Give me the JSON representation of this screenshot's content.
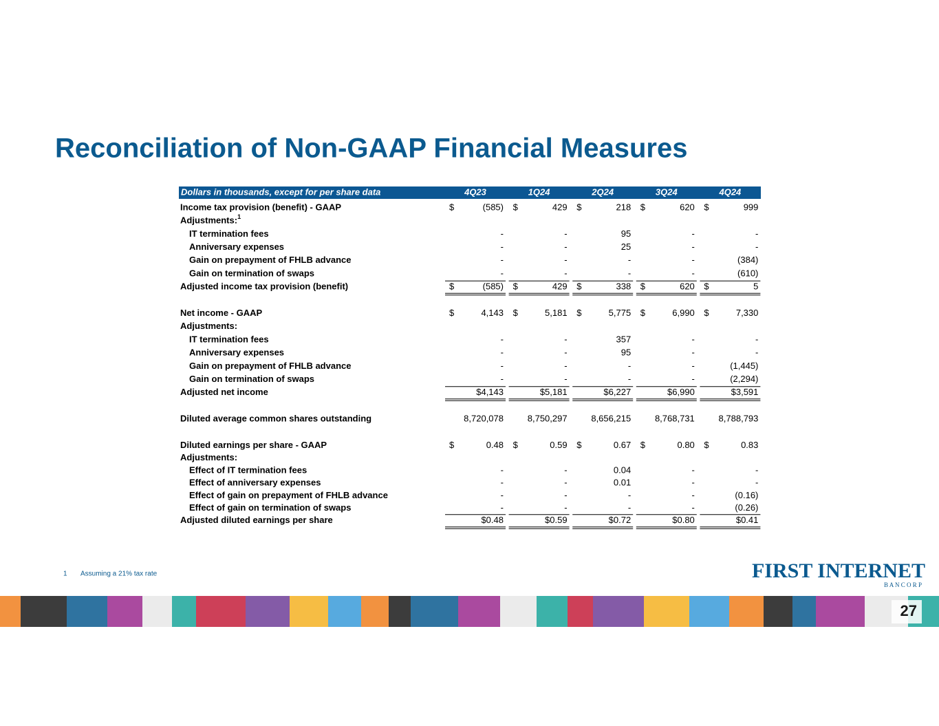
{
  "title": "Reconciliation of Non-GAAP Financial Measures",
  "table": {
    "header": {
      "label": "Dollars in thousands, except for per share data",
      "columns": [
        "4Q23",
        "1Q24",
        "2Q24",
        "3Q24",
        "4Q24"
      ]
    },
    "sections": [
      {
        "rows": [
          {
            "label": "Income tax provision (benefit) - GAAP",
            "currency": "$",
            "cells": [
              "(585)",
              "429",
              "218",
              "620",
              "999"
            ]
          },
          {
            "label": "Adjustments:",
            "note": "1"
          },
          {
            "label": "IT termination fees",
            "cells": [
              "-",
              "-",
              "95",
              "-",
              "-"
            ]
          },
          {
            "label": "Anniversary expenses",
            "cells": [
              "-",
              "-",
              "25",
              "-",
              "-"
            ]
          },
          {
            "label": "Gain on prepayment of FHLB advance",
            "cells": [
              "-",
              "-",
              "-",
              "-",
              "(384)"
            ]
          },
          {
            "label": "Gain on termination of swaps",
            "cells": [
              "-",
              "-",
              "-",
              "-",
              "(610)"
            ]
          },
          {
            "label": "Adjusted income tax provision (benefit)",
            "currency": "$",
            "cells": [
              "(585)",
              "429",
              "338",
              "620",
              "5"
            ]
          }
        ]
      },
      {
        "rows": [
          {
            "label": "Net income  - GAAP",
            "currency": "$",
            "cells": [
              "4,143",
              "5,181",
              "5,775",
              "6,990",
              "7,330"
            ]
          },
          {
            "label": "Adjustments:"
          },
          {
            "label": "IT termination fees",
            "cells": [
              "-",
              "-",
              "357",
              "-",
              "-"
            ]
          },
          {
            "label": "Anniversary expenses",
            "cells": [
              "-",
              "-",
              "95",
              "-",
              "-"
            ]
          },
          {
            "label": "Gain on prepayment of FHLB advance",
            "cells": [
              "-",
              "-",
              "-",
              "-",
              "(1,445)"
            ]
          },
          {
            "label": "Gain on termination of swaps",
            "cells": [
              "-",
              "-",
              "-",
              "-",
              "(2,294)"
            ]
          },
          {
            "label": "Adjusted net income",
            "cells": [
              "$4,143",
              "$5,181",
              "$6,227",
              "$6,990",
              "$3,591"
            ]
          }
        ]
      },
      {
        "rows": [
          {
            "label": "Diluted average common shares outstanding",
            "cells": [
              "8,720,078",
              "8,750,297",
              "8,656,215",
              "8,768,731",
              "8,788,793"
            ]
          }
        ]
      },
      {
        "rows": [
          {
            "label": "Diluted earnings per share - GAAP",
            "currency": "$",
            "cells": [
              "0.48",
              "0.59",
              "0.67",
              "0.80",
              "0.83"
            ]
          },
          {
            "label": "Adjustments:"
          },
          {
            "label": "Effect of IT termination fees",
            "cells": [
              "-",
              "-",
              "0.04",
              "-",
              "-"
            ]
          },
          {
            "label": "Effect of anniversary expenses",
            "cells": [
              "-",
              "-",
              "0.01",
              "-",
              "-"
            ]
          },
          {
            "label": "Effect of gain on prepayment of FHLB advance",
            "cells": [
              "-",
              "-",
              "-",
              "-",
              "(0.16)"
            ]
          },
          {
            "label": "Effect of gain on termination of swaps",
            "cells": [
              "-",
              "-",
              "-",
              "-",
              "(0.26)"
            ]
          },
          {
            "label": "Adjusted diluted earnings per share",
            "cells": [
              "$0.48",
              "$0.59",
              "$0.72",
              "$0.80",
              "$0.41"
            ]
          }
        ]
      }
    ]
  },
  "footnote": {
    "number": "1",
    "text": "Assuming a 21% tax rate"
  },
  "logo": {
    "name": "FIRST INTERNET",
    "sub": "B A N C O R P"
  },
  "page_number": "27"
}
